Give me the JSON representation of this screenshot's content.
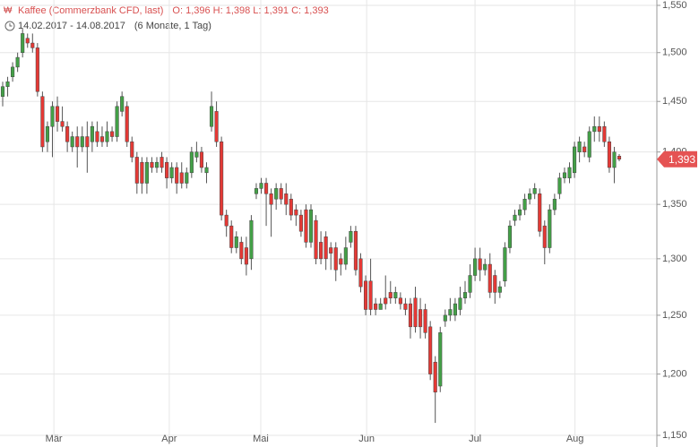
{
  "chart_data": {
    "type": "candlestick",
    "title": "Kaffee (Commerzbank CFD, last)",
    "ohlc_text": "O: 1,396  H: 1,398  L: 1,391  C: 1,393",
    "date_range": "14.02.2017 - 14.08.2017",
    "period": "(6 Monate, 1 Tag)",
    "log_scale": true,
    "grid": true,
    "up_color": "#43a047",
    "down_color": "#e53935",
    "ylim": [
      1.15,
      1.55
    ],
    "yticks": [
      {
        "value": 1.15,
        "label": "1,150"
      },
      {
        "value": 1.2,
        "label": "1,200"
      },
      {
        "value": 1.25,
        "label": "1,250"
      },
      {
        "value": 1.3,
        "label": "1,300"
      },
      {
        "value": 1.35,
        "label": "1,350"
      },
      {
        "value": 1.4,
        "label": "1,400"
      },
      {
        "value": 1.45,
        "label": "1,450"
      },
      {
        "value": 1.5,
        "label": "1,500"
      },
      {
        "value": 1.55,
        "label": "1,550"
      }
    ],
    "xlim": [
      0,
      124
    ],
    "xticks": [
      {
        "value": 10.3,
        "label": "Mär"
      },
      {
        "value": 33.5,
        "label": "Apr"
      },
      {
        "value": 51.9,
        "label": "Mai"
      },
      {
        "value": 73.2,
        "label": "Jun"
      },
      {
        "value": 95,
        "label": "Jul"
      },
      {
        "value": 115.1,
        "label": "Aug"
      }
    ],
    "last_price": {
      "value": 1.393,
      "label": "1,393"
    },
    "open": [
      1.455,
      1.465,
      1.475,
      1.485,
      1.5,
      1.515,
      1.51,
      1.505,
      1.455,
      1.41,
      1.425,
      1.445,
      1.43,
      1.425,
      1.405,
      1.415,
      1.405,
      1.415,
      1.41,
      1.42,
      1.415,
      1.41,
      1.42,
      1.415,
      1.44,
      1.445,
      1.41,
      1.395,
      1.39,
      1.37,
      1.39,
      1.385,
      1.395,
      1.39,
      1.375,
      1.385,
      1.38,
      1.37,
      1.38,
      1.395,
      1.4,
      1.38,
      1.425,
      1.44,
      1.41,
      1.34,
      1.33,
      1.31,
      1.315,
      1.31,
      1.3,
      1.36,
      1.365,
      1.37,
      1.36,
      1.355,
      1.365,
      1.36,
      1.355,
      1.345,
      1.34,
      1.345,
      1.315,
      1.335,
      1.315,
      1.32,
      1.31,
      1.31,
      1.3,
      1.295,
      1.315,
      1.325,
      1.3,
      1.28,
      1.28,
      1.26,
      1.255,
      1.265,
      1.27,
      1.265,
      1.265,
      1.26,
      1.26,
      1.265,
      1.255,
      1.255,
      1.24,
      1.21,
      1.19,
      1.245,
      1.25,
      1.25,
      1.255,
      1.265,
      1.27,
      1.285,
      1.3,
      1.29,
      1.295,
      1.285,
      1.27,
      1.28,
      1.31,
      1.335,
      1.34,
      1.345,
      1.355,
      1.36,
      1.36,
      1.33,
      1.31,
      1.345,
      1.36,
      1.375,
      1.375,
      1.38,
      1.4,
      1.405,
      1.395,
      1.42,
      1.425,
      1.425,
      1.41,
      1.385,
      1.396
    ],
    "high": [
      1.47,
      1.475,
      1.49,
      1.5,
      1.525,
      1.52,
      1.52,
      1.51,
      1.46,
      1.43,
      1.45,
      1.455,
      1.445,
      1.43,
      1.42,
      1.425,
      1.425,
      1.43,
      1.43,
      1.43,
      1.425,
      1.43,
      1.425,
      1.45,
      1.46,
      1.45,
      1.415,
      1.4,
      1.395,
      1.395,
      1.395,
      1.395,
      1.4,
      1.395,
      1.39,
      1.39,
      1.39,
      1.385,
      1.405,
      1.41,
      1.405,
      1.39,
      1.46,
      1.45,
      1.415,
      1.345,
      1.335,
      1.325,
      1.32,
      1.32,
      1.34,
      1.37,
      1.375,
      1.375,
      1.365,
      1.37,
      1.37,
      1.37,
      1.36,
      1.35,
      1.345,
      1.35,
      1.35,
      1.34,
      1.325,
      1.325,
      1.315,
      1.315,
      1.305,
      1.32,
      1.33,
      1.33,
      1.305,
      1.285,
      1.3,
      1.265,
      1.265,
      1.285,
      1.28,
      1.275,
      1.27,
      1.265,
      1.265,
      1.275,
      1.265,
      1.26,
      1.245,
      1.215,
      1.24,
      1.255,
      1.265,
      1.265,
      1.275,
      1.28,
      1.295,
      1.31,
      1.31,
      1.3,
      1.305,
      1.29,
      1.28,
      1.315,
      1.335,
      1.345,
      1.35,
      1.36,
      1.365,
      1.37,
      1.365,
      1.335,
      1.35,
      1.36,
      1.38,
      1.385,
      1.39,
      1.41,
      1.415,
      1.41,
      1.425,
      1.435,
      1.435,
      1.43,
      1.415,
      1.405,
      1.398
    ],
    "low": [
      1.445,
      1.455,
      1.47,
      1.48,
      1.495,
      1.505,
      1.5,
      1.455,
      1.4,
      1.4,
      1.395,
      1.42,
      1.42,
      1.4,
      1.4,
      1.385,
      1.4,
      1.38,
      1.4,
      1.405,
      1.405,
      1.405,
      1.41,
      1.41,
      1.435,
      1.405,
      1.39,
      1.36,
      1.36,
      1.36,
      1.38,
      1.38,
      1.38,
      1.365,
      1.37,
      1.36,
      1.365,
      1.365,
      1.375,
      1.39,
      1.38,
      1.37,
      1.42,
      1.405,
      1.335,
      1.32,
      1.305,
      1.305,
      1.295,
      1.285,
      1.29,
      1.355,
      1.36,
      1.33,
      1.32,
      1.345,
      1.35,
      1.34,
      1.335,
      1.33,
      1.32,
      1.31,
      1.31,
      1.295,
      1.295,
      1.29,
      1.29,
      1.28,
      1.285,
      1.29,
      1.31,
      1.285,
      1.27,
      1.25,
      1.25,
      1.25,
      1.255,
      1.255,
      1.26,
      1.26,
      1.255,
      1.25,
      1.23,
      1.235,
      1.23,
      1.23,
      1.195,
      1.16,
      1.185,
      1.24,
      1.245,
      1.245,
      1.25,
      1.26,
      1.265,
      1.28,
      1.28,
      1.285,
      1.265,
      1.26,
      1.265,
      1.275,
      1.305,
      1.33,
      1.335,
      1.34,
      1.35,
      1.355,
      1.32,
      1.295,
      1.305,
      1.34,
      1.355,
      1.37,
      1.37,
      1.375,
      1.39,
      1.395,
      1.39,
      1.41,
      1.41,
      1.405,
      1.38,
      1.37,
      1.391
    ],
    "close": [
      1.465,
      1.47,
      1.485,
      1.495,
      1.52,
      1.51,
      1.505,
      1.46,
      1.405,
      1.425,
      1.445,
      1.43,
      1.425,
      1.41,
      1.415,
      1.405,
      1.415,
      1.405,
      1.425,
      1.41,
      1.41,
      1.42,
      1.415,
      1.445,
      1.455,
      1.41,
      1.395,
      1.37,
      1.37,
      1.39,
      1.385,
      1.39,
      1.385,
      1.375,
      1.385,
      1.37,
      1.37,
      1.38,
      1.4,
      1.4,
      1.385,
      1.385,
      1.445,
      1.41,
      1.34,
      1.33,
      1.31,
      1.32,
      1.3,
      1.295,
      1.335,
      1.365,
      1.37,
      1.36,
      1.35,
      1.365,
      1.355,
      1.35,
      1.34,
      1.34,
      1.325,
      1.315,
      1.345,
      1.3,
      1.3,
      1.3,
      1.305,
      1.29,
      1.295,
      1.31,
      1.325,
      1.29,
      1.275,
      1.255,
      1.255,
      1.255,
      1.26,
      1.26,
      1.265,
      1.27,
      1.26,
      1.255,
      1.24,
      1.24,
      1.24,
      1.235,
      1.2,
      1.185,
      1.235,
      1.25,
      1.255,
      1.26,
      1.265,
      1.27,
      1.285,
      1.3,
      1.29,
      1.295,
      1.27,
      1.27,
      1.275,
      1.31,
      1.33,
      1.34,
      1.345,
      1.355,
      1.36,
      1.365,
      1.325,
      1.31,
      1.345,
      1.355,
      1.375,
      1.38,
      1.385,
      1.405,
      1.41,
      1.4,
      1.42,
      1.425,
      1.42,
      1.41,
      1.385,
      1.4,
      1.393
    ]
  }
}
